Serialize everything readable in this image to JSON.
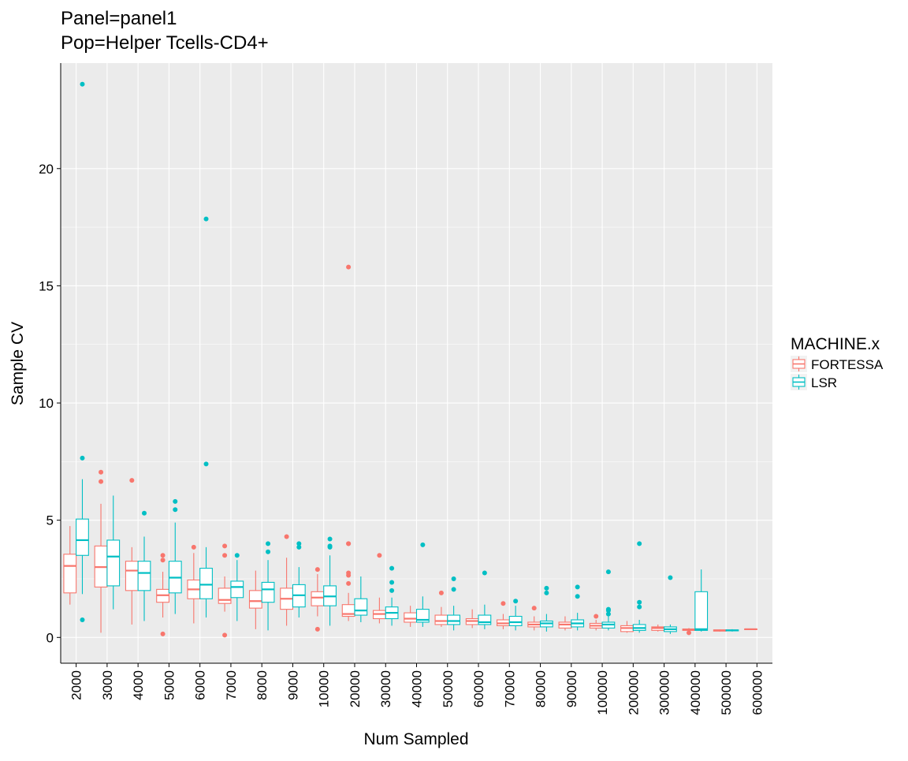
{
  "chart_data": {
    "type": "boxplot",
    "title": "Panel=panel1",
    "subtitle": "Pop=Helper Tcells-CD4+",
    "xlabel": "Num Sampled",
    "ylabel": "Sample CV",
    "ylim": [
      -1.1,
      24.5
    ],
    "yticks": [
      0,
      5,
      10,
      15,
      20
    ],
    "grid": true,
    "legend": {
      "title": "MACHINE.x",
      "position": "right"
    },
    "categories": [
      "2000",
      "3000",
      "4000",
      "5000",
      "6000",
      "7000",
      "8000",
      "9000",
      "10000",
      "20000",
      "30000",
      "40000",
      "50000",
      "60000",
      "70000",
      "80000",
      "90000",
      "100000",
      "200000",
      "300000",
      "400000",
      "500000",
      "600000"
    ],
    "series": [
      {
        "name": "FORTESSA",
        "color": "#F8766D",
        "boxes": [
          {
            "lower": 1.4,
            "q1": 1.9,
            "median": 3.05,
            "q3": 3.55,
            "upper": 4.75,
            "outliers": []
          },
          {
            "lower": 0.2,
            "q1": 2.15,
            "median": 3.0,
            "q3": 3.9,
            "upper": 5.7,
            "outliers": [
              6.65,
              7.05
            ]
          },
          {
            "lower": 0.55,
            "q1": 2.0,
            "median": 2.85,
            "q3": 3.25,
            "upper": 3.85,
            "outliers": [
              6.7
            ]
          },
          {
            "lower": 0.85,
            "q1": 1.5,
            "median": 1.8,
            "q3": 2.05,
            "upper": 2.8,
            "outliers": [
              3.3,
              3.5,
              0.15
            ]
          },
          {
            "lower": 0.6,
            "q1": 1.65,
            "median": 2.05,
            "q3": 2.45,
            "upper": 3.6,
            "outliers": [
              3.85
            ]
          },
          {
            "lower": 1.1,
            "q1": 1.45,
            "median": 1.6,
            "q3": 2.1,
            "upper": 2.6,
            "outliers": [
              3.5,
              3.9,
              0.1
            ]
          },
          {
            "lower": 0.35,
            "q1": 1.25,
            "median": 1.55,
            "q3": 2.0,
            "upper": 2.85,
            "outliers": []
          },
          {
            "lower": 0.5,
            "q1": 1.2,
            "median": 1.65,
            "q3": 2.1,
            "upper": 3.4,
            "outliers": [
              4.3
            ]
          },
          {
            "lower": 0.9,
            "q1": 1.35,
            "median": 1.7,
            "q3": 1.95,
            "upper": 2.7,
            "outliers": [
              2.9,
              0.35
            ]
          },
          {
            "lower": 0.7,
            "q1": 0.9,
            "median": 1.0,
            "q3": 1.4,
            "upper": 1.9,
            "outliers": [
              2.3,
              2.65,
              2.75,
              4.0,
              4.0,
              15.8
            ]
          },
          {
            "lower": 0.6,
            "q1": 0.8,
            "median": 1.0,
            "q3": 1.15,
            "upper": 1.7,
            "outliers": [
              3.5
            ]
          },
          {
            "lower": 0.45,
            "q1": 0.65,
            "median": 0.8,
            "q3": 1.05,
            "upper": 1.35,
            "outliers": []
          },
          {
            "lower": 0.45,
            "q1": 0.55,
            "median": 0.7,
            "q3": 0.95,
            "upper": 1.3,
            "outliers": [
              1.9
            ]
          },
          {
            "lower": 0.4,
            "q1": 0.55,
            "median": 0.7,
            "q3": 0.8,
            "upper": 1.2,
            "outliers": []
          },
          {
            "lower": 0.35,
            "q1": 0.5,
            "median": 0.6,
            "q3": 0.75,
            "upper": 1.0,
            "outliers": [
              1.45
            ]
          },
          {
            "lower": 0.3,
            "q1": 0.45,
            "median": 0.55,
            "q3": 0.65,
            "upper": 0.9,
            "outliers": [
              1.25
            ]
          },
          {
            "lower": 0.3,
            "q1": 0.4,
            "median": 0.55,
            "q3": 0.65,
            "upper": 0.9,
            "outliers": []
          },
          {
            "lower": 0.3,
            "q1": 0.4,
            "median": 0.5,
            "q3": 0.6,
            "upper": 0.75,
            "outliers": [
              0.9
            ]
          },
          {
            "lower": 0.2,
            "q1": 0.25,
            "median": 0.4,
            "q3": 0.5,
            "upper": 0.7,
            "outliers": []
          },
          {
            "lower": 0.25,
            "q1": 0.3,
            "median": 0.4,
            "q3": 0.45,
            "upper": 0.55,
            "outliers": []
          },
          {
            "lower": 0.2,
            "q1": 0.3,
            "median": 0.33,
            "q3": 0.36,
            "upper": 0.4,
            "outliers": [
              0.2
            ]
          },
          {
            "lower": 0.25,
            "q1": 0.27,
            "median": 0.3,
            "q3": 0.32,
            "upper": 0.34,
            "outliers": []
          },
          {
            "lower": 0.33,
            "q1": 0.34,
            "median": 0.35,
            "q3": 0.36,
            "upper": 0.37,
            "outliers": []
          }
        ]
      },
      {
        "name": "LSR",
        "color": "#00BFC4",
        "boxes": [
          {
            "lower": 1.85,
            "q1": 3.5,
            "median": 4.15,
            "q3": 5.05,
            "upper": 6.75,
            "outliers": [
              7.65,
              0.75,
              23.6
            ]
          },
          {
            "lower": 1.2,
            "q1": 2.2,
            "median": 3.45,
            "q3": 4.15,
            "upper": 6.05,
            "outliers": []
          },
          {
            "lower": 0.7,
            "q1": 2.0,
            "median": 2.75,
            "q3": 3.25,
            "upper": 4.3,
            "outliers": [
              5.3
            ]
          },
          {
            "lower": 1.0,
            "q1": 1.9,
            "median": 2.55,
            "q3": 3.25,
            "upper": 4.9,
            "outliers": [
              5.45,
              5.8
            ]
          },
          {
            "lower": 0.85,
            "q1": 1.65,
            "median": 2.25,
            "q3": 2.95,
            "upper": 3.85,
            "outliers": [
              7.4,
              17.85
            ]
          },
          {
            "lower": 0.7,
            "q1": 1.7,
            "median": 2.15,
            "q3": 2.4,
            "upper": 3.3,
            "outliers": [
              3.5
            ]
          },
          {
            "lower": 0.3,
            "q1": 1.5,
            "median": 2.05,
            "q3": 2.35,
            "upper": 3.3,
            "outliers": [
              3.65,
              4.0
            ]
          },
          {
            "lower": 0.85,
            "q1": 1.3,
            "median": 1.8,
            "q3": 2.25,
            "upper": 3.0,
            "outliers": [
              3.85,
              4.0
            ]
          },
          {
            "lower": 0.5,
            "q1": 1.35,
            "median": 1.75,
            "q3": 2.2,
            "upper": 3.5,
            "outliers": [
              3.85,
              3.9,
              4.2
            ]
          },
          {
            "lower": 0.65,
            "q1": 0.95,
            "median": 1.15,
            "q3": 1.65,
            "upper": 2.6,
            "outliers": []
          },
          {
            "lower": 0.5,
            "q1": 0.8,
            "median": 1.05,
            "q3": 1.3,
            "upper": 1.7,
            "outliers": [
              2.0,
              2.35,
              2.95
            ]
          },
          {
            "lower": 0.45,
            "q1": 0.65,
            "median": 0.75,
            "q3": 1.2,
            "upper": 1.75,
            "outliers": [
              3.95
            ]
          },
          {
            "lower": 0.3,
            "q1": 0.55,
            "median": 0.7,
            "q3": 0.95,
            "upper": 1.35,
            "outliers": [
              2.05,
              2.5
            ]
          },
          {
            "lower": 0.35,
            "q1": 0.55,
            "median": 0.65,
            "q3": 0.95,
            "upper": 1.4,
            "outliers": [
              2.75
            ]
          },
          {
            "lower": 0.3,
            "q1": 0.5,
            "median": 0.65,
            "q3": 0.9,
            "upper": 1.35,
            "outliers": [
              1.55
            ]
          },
          {
            "lower": 0.25,
            "q1": 0.45,
            "median": 0.6,
            "q3": 0.7,
            "upper": 1.0,
            "outliers": [
              1.9,
              2.1
            ]
          },
          {
            "lower": 0.3,
            "q1": 0.45,
            "median": 0.6,
            "q3": 0.75,
            "upper": 1.05,
            "outliers": [
              1.75,
              2.15
            ]
          },
          {
            "lower": 0.3,
            "q1": 0.4,
            "median": 0.55,
            "q3": 0.65,
            "upper": 0.9,
            "outliers": [
              1.0,
              1.15,
              1.2,
              2.8
            ]
          },
          {
            "lower": 0.2,
            "q1": 0.3,
            "median": 0.4,
            "q3": 0.55,
            "upper": 0.75,
            "outliers": [
              1.3,
              1.5,
              4.0
            ]
          },
          {
            "lower": 0.15,
            "q1": 0.25,
            "median": 0.35,
            "q3": 0.45,
            "upper": 0.55,
            "outliers": [
              2.55
            ]
          },
          {
            "lower": 0.25,
            "q1": 0.3,
            "median": 0.35,
            "q3": 1.95,
            "upper": 2.9,
            "outliers": []
          },
          {
            "lower": 0.25,
            "q1": 0.28,
            "median": 0.3,
            "q3": 0.32,
            "upper": 0.35,
            "outliers": []
          },
          null
        ]
      }
    ]
  }
}
